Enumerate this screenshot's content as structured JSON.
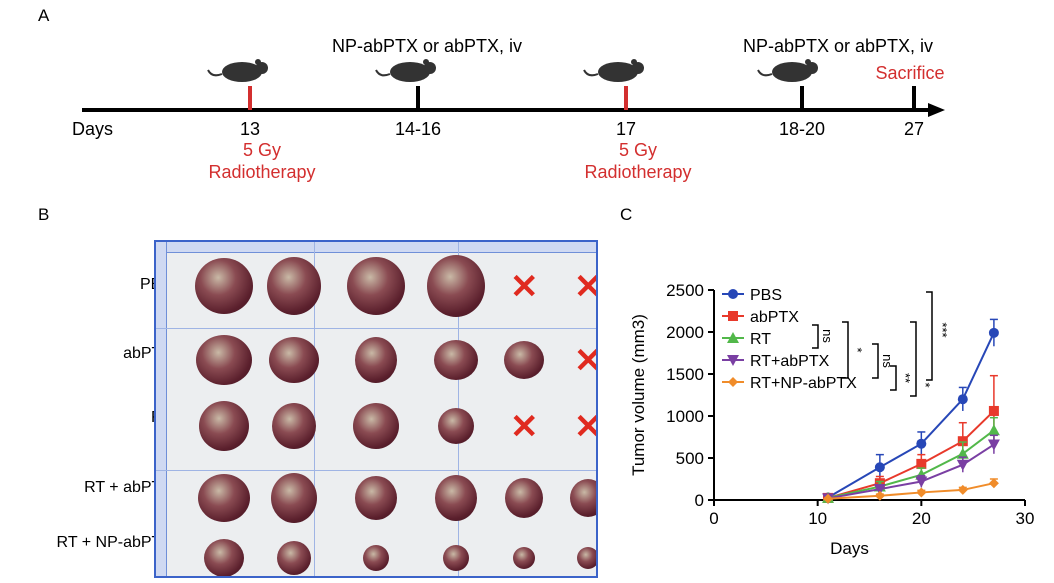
{
  "panels": {
    "a": "A",
    "b": "B",
    "c": "C"
  },
  "timeline": {
    "axis_label": "Days",
    "ticks": [
      {
        "day": "13",
        "color": "#d32f2f"
      },
      {
        "day": "14-16",
        "color": "#000000"
      },
      {
        "day": "17",
        "color": "#d32f2f"
      },
      {
        "day": "18-20",
        "color": "#000000"
      },
      {
        "day": "27",
        "color": "#000000"
      }
    ],
    "drug_label_1": "NP-abPTX or abPTX, iv",
    "drug_label_2": "NP-abPTX or abPTX, iv",
    "sacrifice_label": "Sacrifice",
    "radiation_dose_1": "5 Gy",
    "radiation_label_1": "Radiotherapy",
    "radiation_dose_2": "5 Gy",
    "radiation_label_2": "Radiotherapy",
    "accent_color": "#d32f2f"
  },
  "photo": {
    "rows": [
      {
        "label": "PBS",
        "tumor_count": 4,
        "crossed_out": 2
      },
      {
        "label": "abPTX",
        "tumor_count": 5,
        "crossed_out": 1
      },
      {
        "label": "RT",
        "tumor_count": 4,
        "crossed_out": 2
      },
      {
        "label": "RT + abPTX",
        "tumor_count": 6,
        "crossed_out": 0
      },
      {
        "label": "RT + NP-abPTX",
        "tumor_count": 6,
        "crossed_out": 0
      }
    ],
    "cross_color": "#e02a1f"
  },
  "chart_data": {
    "type": "line",
    "xlabel": "Days",
    "ylabel": "Tumor volume (mm3)",
    "xlim": [
      0,
      30
    ],
    "ylim": [
      0,
      2500
    ],
    "xticks": [
      0,
      10,
      20,
      30
    ],
    "yticks": [
      0,
      500,
      1000,
      1500,
      2000,
      2500
    ],
    "x": [
      11,
      16,
      20,
      24,
      27
    ],
    "series": [
      {
        "name": "PBS",
        "color": "#2747b7",
        "marker": "circle",
        "values": [
          30,
          390,
          670,
          1200,
          1990
        ],
        "errors": [
          10,
          150,
          140,
          140,
          160
        ]
      },
      {
        "name": "abPTX",
        "color": "#e8392b",
        "marker": "square",
        "values": [
          25,
          200,
          430,
          700,
          1060
        ],
        "errors": [
          10,
          80,
          110,
          220,
          420
        ]
      },
      {
        "name": "RT",
        "color": "#52b84a",
        "marker": "triangle-up",
        "values": [
          25,
          160,
          300,
          550,
          830
        ],
        "errors": [
          10,
          60,
          80,
          140,
          150
        ]
      },
      {
        "name": "RT+abPTX",
        "color": "#7a3fa3",
        "marker": "triangle-down",
        "values": [
          20,
          130,
          220,
          420,
          660
        ],
        "errors": [
          8,
          50,
          70,
          90,
          110
        ]
      },
      {
        "name": "RT+NP-abPTX",
        "color": "#f08c2a",
        "marker": "diamond",
        "values": [
          15,
          50,
          90,
          120,
          200
        ],
        "errors": [
          5,
          20,
          25,
          30,
          50
        ]
      }
    ],
    "legend_position": "top-left",
    "significance": [
      "ns",
      "*",
      "ns",
      "**",
      "*",
      "***"
    ]
  }
}
